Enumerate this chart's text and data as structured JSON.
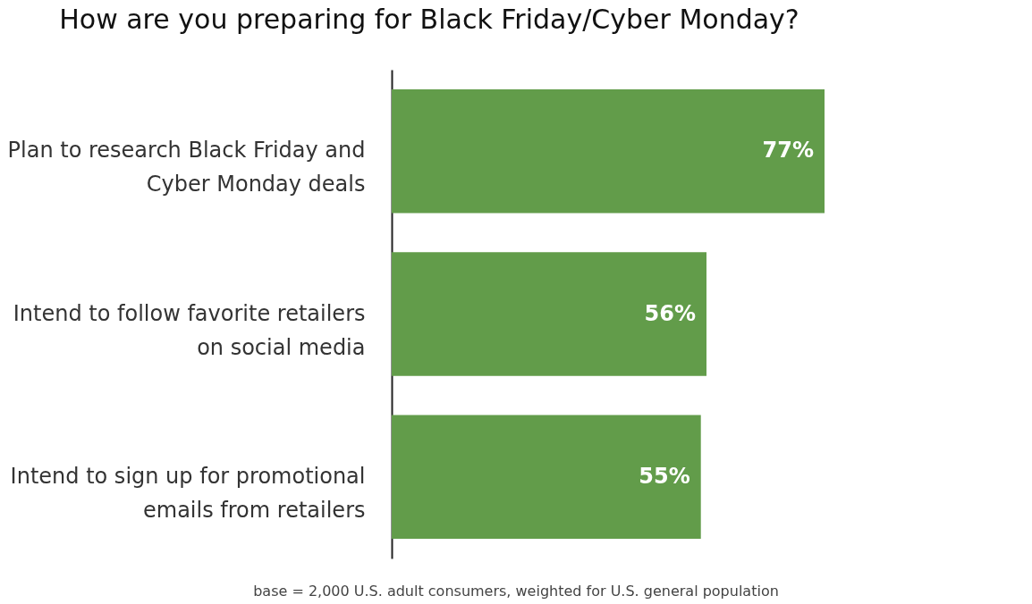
{
  "chart_data": {
    "type": "bar",
    "orientation": "horizontal",
    "title": "How are you preparing for Black Friday/Cyber Monday?",
    "categories": [
      "Plan to research Black Friday and Cyber Monday deals",
      "Intend to follow favorite retailers on social media",
      "Intend to sign up for promotional emails from retailers"
    ],
    "values": [
      77,
      56,
      55
    ],
    "value_labels": [
      "77%",
      "56%",
      "55%"
    ],
    "color": "#629c4a",
    "annotations": [
      "base = 2,000 U.S. adult consumers, weighted for U.S. general population"
    ]
  }
}
